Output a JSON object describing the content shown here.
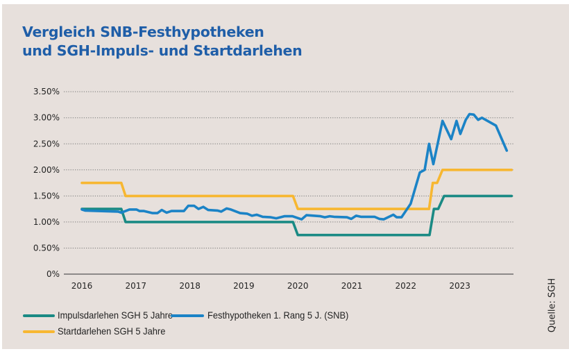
{
  "chart_data": {
    "type": "line",
    "title": "Vergleich SNB-Festhypotheken",
    "subtitle": "und SGH-Impuls- und Startdarlehen",
    "xlabel": "",
    "ylabel": "",
    "x_ticks": [
      "2016",
      "2017",
      "2018",
      "2019",
      "2020",
      "2021",
      "2022",
      "2023"
    ],
    "y_ticks": [
      "0%",
      "0.50%",
      "1.00%",
      "1.50%",
      "2.00%",
      "2.50%",
      "3.00%",
      "3.50%"
    ],
    "xlim": [
      2016,
      2024
    ],
    "ylim": [
      0,
      3.5
    ],
    "grid": "horizontal dotted",
    "legend_placement": "bottom",
    "source": "Quelle: SGH",
    "series": [
      {
        "name": "Impulsdarlehen SGH 5 Jahre",
        "color": "#1a8a84",
        "points": [
          [
            2016.0,
            1.25
          ],
          [
            2016.73,
            1.25
          ],
          [
            2016.81,
            1.0
          ],
          [
            2019.91,
            1.0
          ],
          [
            2020.0,
            0.75
          ],
          [
            2022.44,
            0.75
          ],
          [
            2022.52,
            1.25
          ],
          [
            2022.6,
            1.25
          ],
          [
            2022.71,
            1.5
          ],
          [
            2023.96,
            1.5
          ]
        ]
      },
      {
        "name": "Festhypotheken 1. Rang 5 J. (SNB)",
        "color": "#1b83c6",
        "points": [
          [
            2016.0,
            1.24
          ],
          [
            2016.06,
            1.22
          ],
          [
            2016.67,
            1.2
          ],
          [
            2016.73,
            1.18
          ],
          [
            2016.88,
            1.24
          ],
          [
            2017.01,
            1.24
          ],
          [
            2017.07,
            1.21
          ],
          [
            2017.15,
            1.21
          ],
          [
            2017.31,
            1.17
          ],
          [
            2017.4,
            1.17
          ],
          [
            2017.48,
            1.23
          ],
          [
            2017.57,
            1.18
          ],
          [
            2017.66,
            1.21
          ],
          [
            2017.89,
            1.21
          ],
          [
            2017.97,
            1.31
          ],
          [
            2018.08,
            1.31
          ],
          [
            2018.16,
            1.25
          ],
          [
            2018.25,
            1.29
          ],
          [
            2018.34,
            1.23
          ],
          [
            2018.51,
            1.22
          ],
          [
            2018.58,
            1.2
          ],
          [
            2018.68,
            1.26
          ],
          [
            2018.76,
            1.24
          ],
          [
            2018.93,
            1.17
          ],
          [
            2019.06,
            1.16
          ],
          [
            2019.15,
            1.12
          ],
          [
            2019.24,
            1.14
          ],
          [
            2019.35,
            1.1
          ],
          [
            2019.5,
            1.09
          ],
          [
            2019.6,
            1.07
          ],
          [
            2019.75,
            1.11
          ],
          [
            2019.9,
            1.11
          ],
          [
            2020.07,
            1.05
          ],
          [
            2020.16,
            1.13
          ],
          [
            2020.42,
            1.11
          ],
          [
            2020.5,
            1.09
          ],
          [
            2020.59,
            1.11
          ],
          [
            2020.67,
            1.1
          ],
          [
            2020.91,
            1.09
          ],
          [
            2020.99,
            1.06
          ],
          [
            2021.08,
            1.12
          ],
          [
            2021.17,
            1.1
          ],
          [
            2021.42,
            1.1
          ],
          [
            2021.51,
            1.06
          ],
          [
            2021.59,
            1.05
          ],
          [
            2021.77,
            1.14
          ],
          [
            2021.83,
            1.09
          ],
          [
            2021.92,
            1.09
          ],
          [
            2022.09,
            1.35
          ],
          [
            2022.26,
            1.95
          ],
          [
            2022.35,
            2.0
          ],
          [
            2022.43,
            2.5
          ],
          [
            2022.51,
            2.11
          ],
          [
            2022.68,
            2.94
          ],
          [
            2022.84,
            2.59
          ],
          [
            2022.94,
            2.94
          ],
          [
            2023.01,
            2.69
          ],
          [
            2023.11,
            2.96
          ],
          [
            2023.18,
            3.07
          ],
          [
            2023.26,
            3.06
          ],
          [
            2023.34,
            2.96
          ],
          [
            2023.41,
            3.0
          ],
          [
            2023.67,
            2.85
          ],
          [
            2023.87,
            2.37
          ]
        ]
      },
      {
        "name": "Startdarlehen SGH 5 Jahre",
        "color": "#f7b731",
        "points": [
          [
            2016.0,
            1.75
          ],
          [
            2016.73,
            1.75
          ],
          [
            2016.81,
            1.5
          ],
          [
            2019.91,
            1.5
          ],
          [
            2020.0,
            1.25
          ],
          [
            2022.43,
            1.25
          ],
          [
            2022.5,
            1.75
          ],
          [
            2022.58,
            1.75
          ],
          [
            2022.68,
            2.0
          ],
          [
            2023.96,
            2.0
          ]
        ]
      }
    ]
  }
}
